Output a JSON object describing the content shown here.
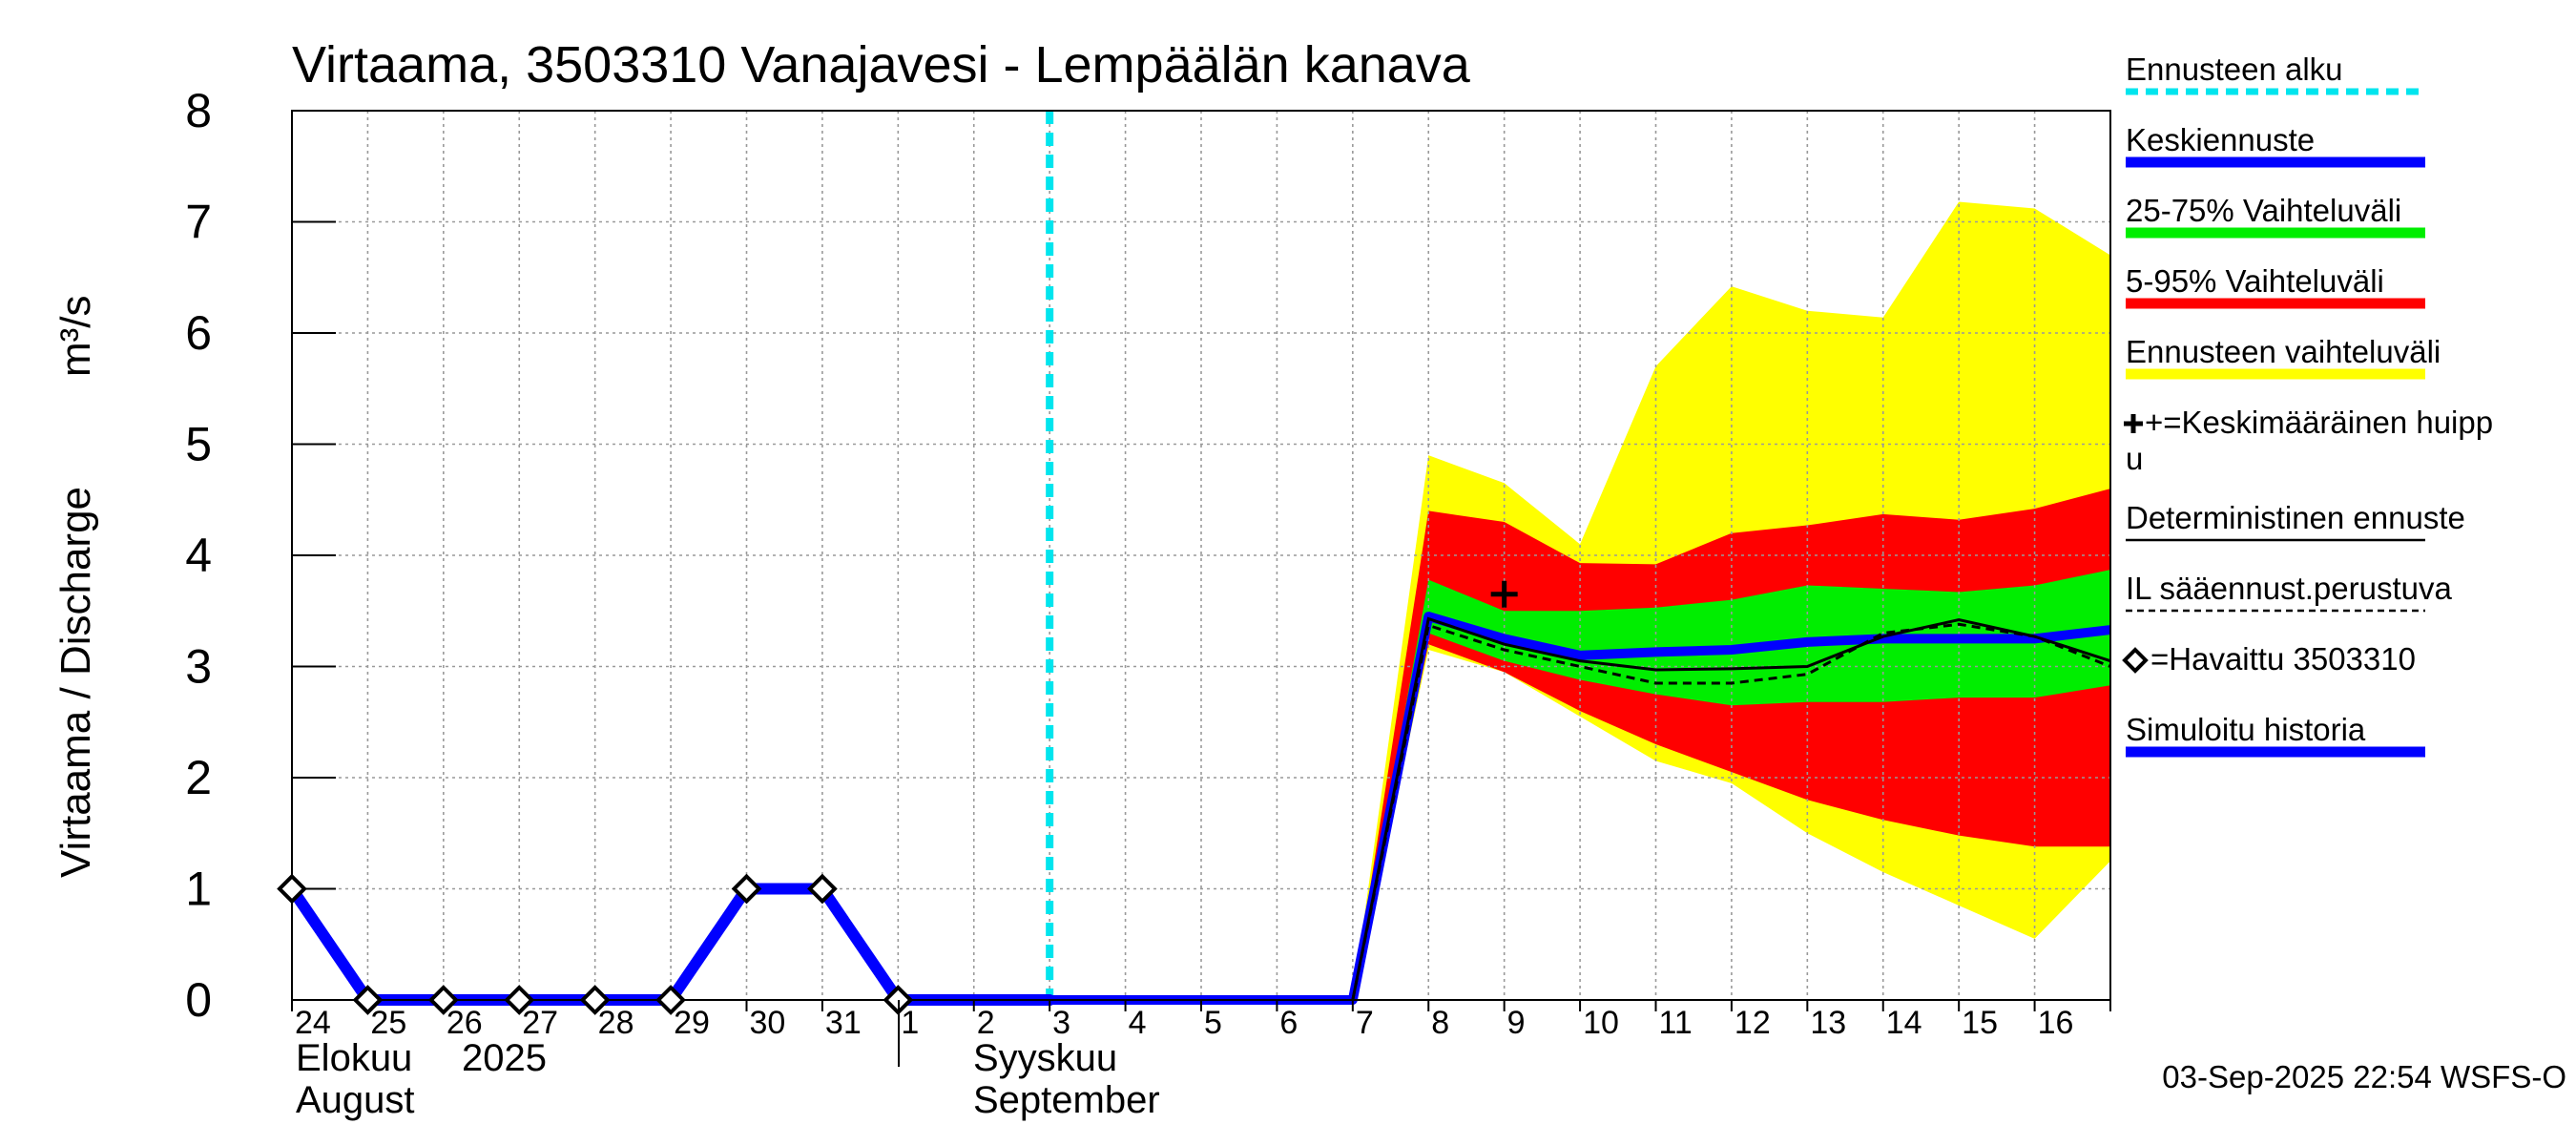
{
  "colors": {
    "forecast_start": "#00e5ee",
    "mean_forecast": "#0000ff",
    "band_25_75": "#00ee00",
    "band_5_95": "#ff0000",
    "band_range": "#ffff00",
    "deterministic": "#000000",
    "il_weather": "#000000",
    "observed": "#000000",
    "simulated": "#0000ff"
  },
  "chart_data": {
    "type": "line",
    "title": "Virtaama, 3503310 Vanajavesi - Lempäälän kanava",
    "ylabel_left": "Virtaama / Discharge",
    "ylabel_right": "m³/s",
    "ylim": [
      0,
      8
    ],
    "yticks": [
      "0",
      "1",
      "2",
      "3",
      "4",
      "5",
      "6",
      "7",
      "8"
    ],
    "grid": true,
    "legend_position": "right",
    "x_tick_labels": [
      "24",
      "25",
      "26",
      "27",
      "28",
      "29",
      "30",
      "31",
      "1",
      "2",
      "3",
      "4",
      "5",
      "6",
      "7",
      "8",
      "9",
      "10",
      "11",
      "12",
      "13",
      "14",
      "15",
      "16"
    ],
    "month_labels": {
      "aug_fi": "Elokuu",
      "year": "2025",
      "aug_en": "August",
      "sep_fi": "Syyskuu",
      "sep_en": "September"
    },
    "forecast_start_x": "2025-09-03",
    "x": [
      "2025-08-24",
      "2025-08-25",
      "2025-08-26",
      "2025-08-27",
      "2025-08-28",
      "2025-08-29",
      "2025-08-30",
      "2025-08-31",
      "2025-09-01",
      "2025-09-02",
      "2025-09-03",
      "2025-09-04",
      "2025-09-05",
      "2025-09-06",
      "2025-09-07",
      "2025-09-08",
      "2025-09-09",
      "2025-09-10",
      "2025-09-11",
      "2025-09-12",
      "2025-09-13",
      "2025-09-14",
      "2025-09-15",
      "2025-09-16",
      "2025-09-17"
    ],
    "series": [
      {
        "name": "Ennusteen vaihteluväli",
        "role": "band_range",
        "x": [
          "2025-09-07",
          "2025-09-08",
          "2025-09-09",
          "2025-09-10",
          "2025-09-11",
          "2025-09-12",
          "2025-09-13",
          "2025-09-14",
          "2025-09-15",
          "2025-09-16",
          "2025-09-17"
        ],
        "upper": [
          0,
          4.9,
          4.65,
          4.1,
          5.7,
          6.42,
          6.2,
          6.14,
          7.18,
          7.12,
          6.7
        ],
        "lower": [
          0,
          3.15,
          2.95,
          2.55,
          2.15,
          1.95,
          1.5,
          1.15,
          0.85,
          0.55,
          1.25
        ]
      },
      {
        "name": "5-95% Vaihteluväli",
        "role": "band_5_95",
        "x": [
          "2025-09-07",
          "2025-09-08",
          "2025-09-09",
          "2025-09-10",
          "2025-09-11",
          "2025-09-12",
          "2025-09-13",
          "2025-09-14",
          "2025-09-15",
          "2025-09-16",
          "2025-09-17"
        ],
        "upper": [
          0,
          4.4,
          4.3,
          3.93,
          3.92,
          4.2,
          4.27,
          4.37,
          4.32,
          4.42,
          4.6
        ],
        "lower": [
          0,
          3.2,
          2.95,
          2.6,
          2.3,
          2.05,
          1.8,
          1.62,
          1.48,
          1.38,
          1.38
        ]
      },
      {
        "name": "25-75% Vaihteluväli",
        "role": "band_25_75",
        "x": [
          "2025-09-07",
          "2025-09-08",
          "2025-09-09",
          "2025-09-10",
          "2025-09-11",
          "2025-09-12",
          "2025-09-13",
          "2025-09-14",
          "2025-09-15",
          "2025-09-16",
          "2025-09-17"
        ],
        "upper": [
          0,
          3.78,
          3.5,
          3.5,
          3.53,
          3.6,
          3.73,
          3.7,
          3.67,
          3.73,
          3.87
        ],
        "lower": [
          0,
          3.3,
          3.05,
          2.88,
          2.75,
          2.65,
          2.68,
          2.68,
          2.72,
          2.72,
          2.83
        ]
      },
      {
        "name": "Simuloitu historia",
        "role": "simulated",
        "x": [
          "2025-08-24",
          "2025-08-25",
          "2025-08-26",
          "2025-08-27",
          "2025-08-28",
          "2025-08-29",
          "2025-08-30",
          "2025-08-31",
          "2025-09-01",
          "2025-09-02",
          "2025-09-03"
        ],
        "values": [
          1,
          0,
          0,
          0,
          0,
          0,
          1,
          1,
          0,
          0,
          0
        ]
      },
      {
        "name": "Keskiennuste",
        "role": "mean_forecast",
        "x": [
          "2025-09-03",
          "2025-09-04",
          "2025-09-05",
          "2025-09-06",
          "2025-09-07",
          "2025-09-08",
          "2025-09-09",
          "2025-09-10",
          "2025-09-11",
          "2025-09-12",
          "2025-09-13",
          "2025-09-14",
          "2025-09-15",
          "2025-09-16",
          "2025-09-17"
        ],
        "values": [
          0,
          0,
          0,
          0,
          0,
          3.45,
          3.25,
          3.1,
          3.13,
          3.15,
          3.22,
          3.25,
          3.25,
          3.25,
          3.33
        ]
      },
      {
        "name": "Deterministinen ennuste",
        "role": "deterministic",
        "x": [
          "2025-09-07",
          "2025-09-08",
          "2025-09-09",
          "2025-09-10",
          "2025-09-11",
          "2025-09-12",
          "2025-09-13",
          "2025-09-14",
          "2025-09-15",
          "2025-09-16",
          "2025-09-17"
        ],
        "values": [
          0,
          3.43,
          3.2,
          3.05,
          2.97,
          2.98,
          3.0,
          3.27,
          3.42,
          3.27,
          3.05
        ]
      },
      {
        "name": "IL sääennust.perustuva",
        "role": "il_weather",
        "x": [
          "2025-09-07",
          "2025-09-08",
          "2025-09-09",
          "2025-09-10",
          "2025-09-11",
          "2025-09-12",
          "2025-09-13",
          "2025-09-14",
          "2025-09-15",
          "2025-09-16",
          "2025-09-17"
        ],
        "values": [
          0,
          3.37,
          3.15,
          3.0,
          2.85,
          2.85,
          2.93,
          3.3,
          3.38,
          3.27,
          3.0
        ]
      },
      {
        "name": "Havaittu 3503310",
        "role": "observed",
        "x": [
          "2025-08-24",
          "2025-08-25",
          "2025-08-26",
          "2025-08-27",
          "2025-08-28",
          "2025-08-29",
          "2025-08-30",
          "2025-08-31",
          "2025-09-01"
        ],
        "values": [
          1,
          0,
          0,
          0,
          0,
          0,
          1,
          1,
          0
        ]
      }
    ],
    "mean_peak": {
      "name": "Keskimääräinen huippu",
      "x": "2025-09-09",
      "y": 3.65
    },
    "legend": [
      {
        "label": "Ennusteen alku",
        "role": "forecast_start"
      },
      {
        "label": "Keskiennuste",
        "role": "mean_forecast"
      },
      {
        "label": "25-75% Vaihteluväli",
        "role": "band_25_75"
      },
      {
        "label": "5-95% Vaihteluväli",
        "role": "band_5_95"
      },
      {
        "label": "Ennusteen vaihteluväli",
        "role": "band_range"
      },
      {
        "label": "+=Keskimääräinen huipp",
        "label2": "u",
        "role": "mean_peak"
      },
      {
        "label": "Deterministinen ennuste",
        "role": "deterministic"
      },
      {
        "label": "IL sääennust.perustuva",
        "role": "il_weather"
      },
      {
        "label": "=Havaittu 3503310",
        "role": "observed"
      },
      {
        "label": "Simuloitu historia",
        "role": "simulated"
      }
    ],
    "timestamp": "03-Sep-2025 22:54 WSFS-O"
  }
}
